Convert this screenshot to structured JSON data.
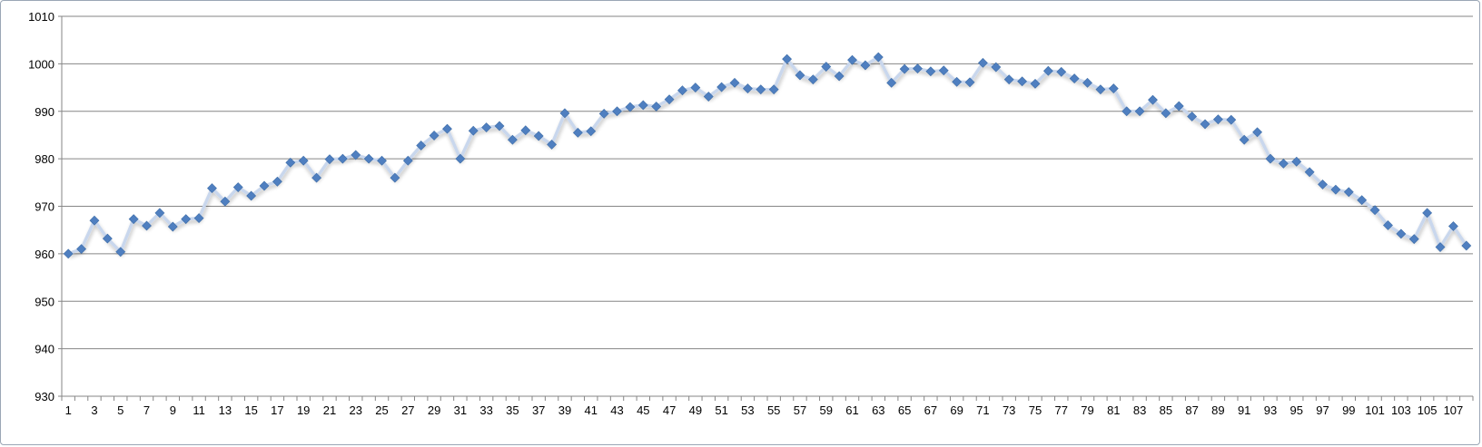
{
  "chart_data": {
    "type": "line",
    "title": "",
    "xlabel": "",
    "ylabel": "",
    "ylim": [
      930,
      1010
    ],
    "yticks": [
      930,
      940,
      950,
      960,
      970,
      980,
      990,
      1000,
      1010
    ],
    "grid": true,
    "legend": "none",
    "line_color": "#c9d7ed",
    "marker_color": "#4f7fc0",
    "x": [
      1,
      2,
      3,
      4,
      5,
      6,
      7,
      8,
      9,
      10,
      11,
      12,
      13,
      14,
      15,
      16,
      17,
      18,
      19,
      20,
      21,
      22,
      23,
      24,
      25,
      26,
      27,
      28,
      29,
      30,
      31,
      32,
      33,
      34,
      35,
      36,
      37,
      38,
      39,
      40,
      41,
      42,
      43,
      44,
      45,
      46,
      47,
      48,
      49,
      50,
      51,
      52,
      53,
      54,
      55,
      56,
      57,
      58,
      59,
      60,
      61,
      62,
      63,
      64,
      65,
      66,
      67,
      68,
      69,
      70,
      71,
      72,
      73,
      74,
      75,
      76,
      77,
      78,
      79,
      80,
      81,
      82,
      83,
      84,
      85,
      86,
      87,
      88,
      89,
      90,
      91,
      92,
      93,
      94,
      95,
      96,
      97,
      98,
      99,
      100,
      101,
      102,
      103,
      104,
      105,
      106,
      107,
      108
    ],
    "xtick_labels": [
      "1",
      "3",
      "5",
      "7",
      "9",
      "11",
      "13",
      "15",
      "17",
      "19",
      "21",
      "23",
      "25",
      "27",
      "29",
      "31",
      "33",
      "35",
      "37",
      "39",
      "41",
      "43",
      "45",
      "47",
      "49",
      "51",
      "53",
      "55",
      "57",
      "59",
      "61",
      "63",
      "65",
      "67",
      "69",
      "71",
      "73",
      "75",
      "77",
      "79",
      "81",
      "83",
      "85",
      "87",
      "89",
      "91",
      "93",
      "95",
      "97",
      "99",
      "101",
      "103",
      "105",
      "107"
    ],
    "series": [
      {
        "values": [
          960,
          961,
          967,
          963.2,
          960.4,
          967.3,
          965.9,
          968.6,
          965.7,
          967.3,
          967.5,
          973.8,
          971,
          974,
          972.2,
          974.3,
          975.2,
          979.2,
          979.6,
          976,
          979.9,
          980,
          980.8,
          980,
          979.6,
          976,
          979.6,
          982.8,
          984.9,
          986.3,
          980,
          985.9,
          986.6,
          986.9,
          984,
          986,
          984.8,
          983,
          989.6,
          985.5,
          985.8,
          989.5,
          990,
          990.9,
          991.3,
          991,
          992.5,
          994.4,
          995,
          993.1,
          995.1,
          996,
          994.8,
          994.6,
          994.6,
          1001,
          997.6,
          996.7,
          999.4,
          997.4,
          1000.8,
          999.7,
          1001.4,
          996,
          998.9,
          999,
          998.4,
          998.6,
          996.2,
          996.1,
          1000.2,
          999.3,
          996.7,
          996.3,
          995.8,
          998.5,
          998.3,
          996.9,
          996,
          994.6,
          994.8,
          990,
          990,
          992.4,
          989.6,
          991.1,
          988.9,
          987.3,
          988.3,
          988.2,
          984,
          985.6,
          980,
          979,
          979.4,
          977.2,
          974.6,
          973.5,
          973,
          971.3,
          969.2,
          966,
          964.2,
          963.1,
          968.6,
          961.4,
          965.8,
          961.7
        ]
      }
    ]
  }
}
